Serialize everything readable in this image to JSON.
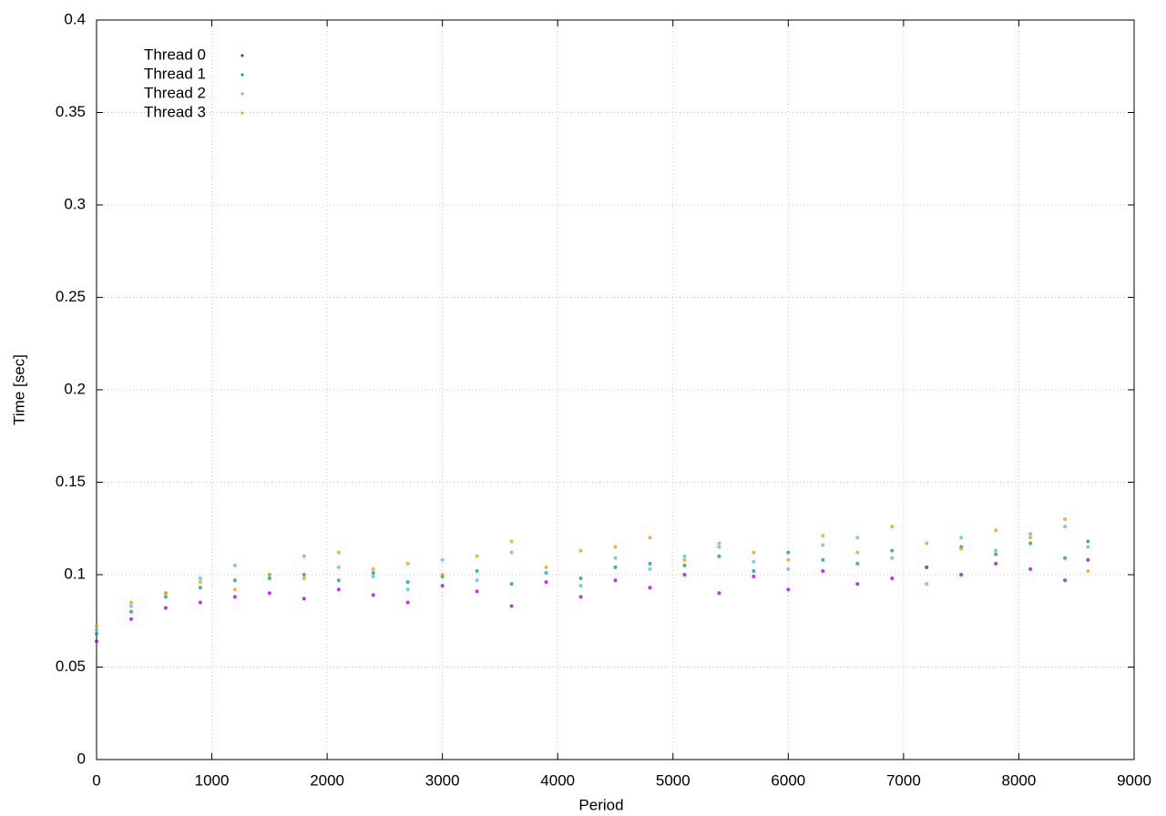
{
  "chart_data": {
    "type": "scatter",
    "xlabel": "Period",
    "ylabel": "Time [sec]",
    "xlim": [
      0,
      9000
    ],
    "ylim": [
      0,
      0.4
    ],
    "xticks": [
      0,
      1000,
      2000,
      3000,
      4000,
      5000,
      6000,
      7000,
      8000,
      9000
    ],
    "yticks": [
      0,
      0.05,
      0.1,
      0.15,
      0.2,
      0.25,
      0.3,
      0.35,
      0.4
    ],
    "grid": true,
    "legend": "top-left",
    "x": [
      0,
      300,
      600,
      900,
      1200,
      1500,
      1800,
      2100,
      2400,
      2700,
      3000,
      3300,
      3600,
      3900,
      4200,
      4500,
      4800,
      5100,
      5400,
      5700,
      6000,
      6300,
      6600,
      6900,
      7200,
      7500,
      7800,
      8100,
      8400,
      8600
    ],
    "series": [
      {
        "name": "Thread 0",
        "color": "#9400d3",
        "values": [
          0.064,
          0.076,
          0.082,
          0.085,
          0.088,
          0.09,
          0.087,
          0.092,
          0.089,
          0.085,
          0.094,
          0.091,
          0.083,
          0.096,
          0.088,
          0.097,
          0.093,
          0.1,
          0.09,
          0.099,
          0.092,
          0.102,
          0.095,
          0.098,
          0.104,
          0.1,
          0.106,
          0.103,
          0.097,
          0.108
        ]
      },
      {
        "name": "Thread 1",
        "color": "#009e73",
        "values": [
          0.068,
          0.08,
          0.088,
          0.093,
          0.097,
          0.098,
          0.1,
          0.097,
          0.101,
          0.096,
          0.099,
          0.102,
          0.095,
          0.101,
          0.098,
          0.104,
          0.106,
          0.105,
          0.11,
          0.102,
          0.112,
          0.108,
          0.106,
          0.113,
          0.104,
          0.115,
          0.111,
          0.117,
          0.109,
          0.118
        ]
      },
      {
        "name": "Thread 2",
        "color": "#56b4e9",
        "values": [
          0.07,
          0.083,
          0.09,
          0.098,
          0.105,
          0.1,
          0.11,
          0.104,
          0.099,
          0.092,
          0.108,
          0.097,
          0.112,
          0.101,
          0.094,
          0.109,
          0.103,
          0.11,
          0.115,
          0.107,
          0.103,
          0.116,
          0.12,
          0.109,
          0.095,
          0.12,
          0.113,
          0.122,
          0.126,
          0.115
        ]
      },
      {
        "name": "Thread 3",
        "color": "#e69f00",
        "values": [
          0.072,
          0.085,
          0.09,
          0.096,
          0.092,
          0.1,
          0.098,
          0.112,
          0.103,
          0.106,
          0.1,
          0.11,
          0.118,
          0.104,
          0.113,
          0.115,
          0.12,
          0.108,
          0.117,
          0.112,
          0.108,
          0.121,
          0.112,
          0.126,
          0.117,
          0.114,
          0.124,
          0.12,
          0.13,
          0.102
        ]
      }
    ]
  }
}
